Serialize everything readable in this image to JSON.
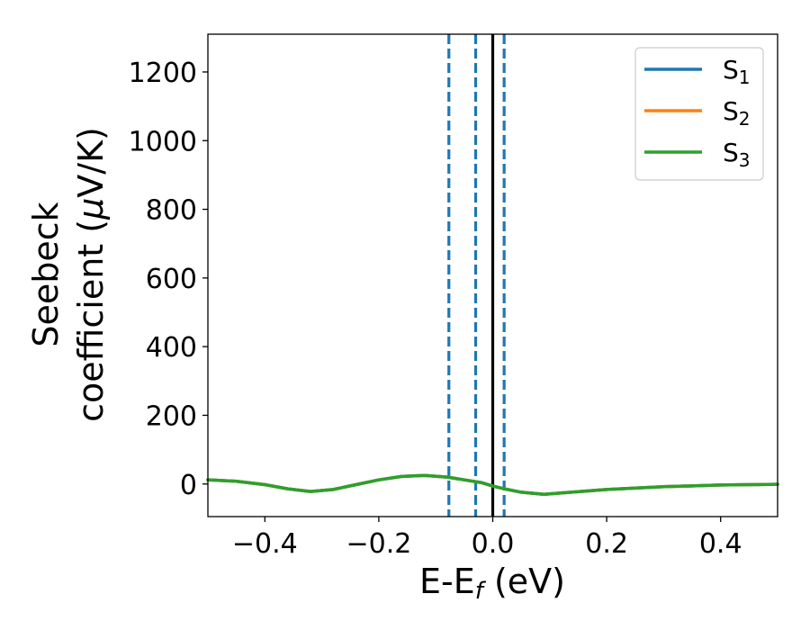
{
  "chart_data": {
    "type": "line",
    "xlabel": "E-E",
    "xlabel_sub": "f",
    "xlabel_unit": " (eV)",
    "ylabel_line1": "Seebeck",
    "ylabel_line2_a": "coefficient  (",
    "ylabel_mu": "μ",
    "ylabel_line2_b": "V/K)",
    "xlim": [
      -0.5,
      0.5
    ],
    "ylim": [
      -95,
      1310
    ],
    "x_ticks": [
      -0.4,
      -0.2,
      0.0,
      0.2,
      0.4
    ],
    "x_tick_labels": [
      "−0.4",
      "−0.2",
      "0.0",
      "0.2",
      "0.4"
    ],
    "y_ticks": [
      0,
      200,
      400,
      600,
      800,
      1000,
      1200
    ],
    "y_tick_labels": [
      "0",
      "200",
      "400",
      "600",
      "800",
      "1000",
      "1200"
    ],
    "legend_position": "top-right",
    "grid": false,
    "series": [
      {
        "name": "S",
        "sub": "1",
        "color": "#1f77b4",
        "x": [
          -0.5,
          -0.45,
          -0.4,
          -0.36,
          -0.32,
          -0.28,
          -0.24,
          -0.2,
          -0.16,
          -0.12,
          -0.08,
          -0.05,
          -0.02,
          0.0,
          0.02,
          0.05,
          0.09,
          0.13,
          0.2,
          0.3,
          0.4,
          0.5
        ],
        "y": [
          12,
          8,
          -2,
          -14,
          -22,
          -16,
          -2,
          12,
          22,
          25,
          20,
          12,
          4,
          -6,
          -14,
          -24,
          -30,
          -25,
          -16,
          -8,
          -3,
          -1
        ]
      },
      {
        "name": "S",
        "sub": "2",
        "color": "#ff7f0e",
        "x": [
          -0.5,
          -0.45,
          -0.4,
          -0.36,
          -0.32,
          -0.28,
          -0.24,
          -0.2,
          -0.16,
          -0.12,
          -0.08,
          -0.05,
          -0.02,
          0.0,
          0.02,
          0.05,
          0.09,
          0.13,
          0.2,
          0.3,
          0.4,
          0.5
        ],
        "y": [
          12,
          8,
          -2,
          -14,
          -22,
          -16,
          -2,
          12,
          22,
          25,
          20,
          12,
          4,
          -6,
          -14,
          -24,
          -30,
          -25,
          -16,
          -8,
          -3,
          -1
        ]
      },
      {
        "name": "S",
        "sub": "3",
        "color": "#2ca02c",
        "x": [
          -0.5,
          -0.45,
          -0.4,
          -0.36,
          -0.32,
          -0.28,
          -0.24,
          -0.2,
          -0.16,
          -0.12,
          -0.08,
          -0.05,
          -0.02,
          0.0,
          0.02,
          0.05,
          0.09,
          0.13,
          0.2,
          0.3,
          0.4,
          0.5
        ],
        "y": [
          12,
          8,
          -2,
          -14,
          -22,
          -16,
          -2,
          12,
          22,
          25,
          20,
          12,
          4,
          -6,
          -14,
          -24,
          -30,
          -25,
          -16,
          -8,
          -3,
          -1
        ]
      }
    ],
    "vertical_lines": [
      {
        "x": -0.077,
        "style": "dashed",
        "color": "#1f77b4"
      },
      {
        "x": -0.03,
        "style": "dashed",
        "color": "#1f77b4"
      },
      {
        "x": 0.02,
        "style": "dashed",
        "color": "#1f77b4"
      },
      {
        "x": 0.0,
        "style": "solid",
        "color": "#000000"
      }
    ]
  }
}
